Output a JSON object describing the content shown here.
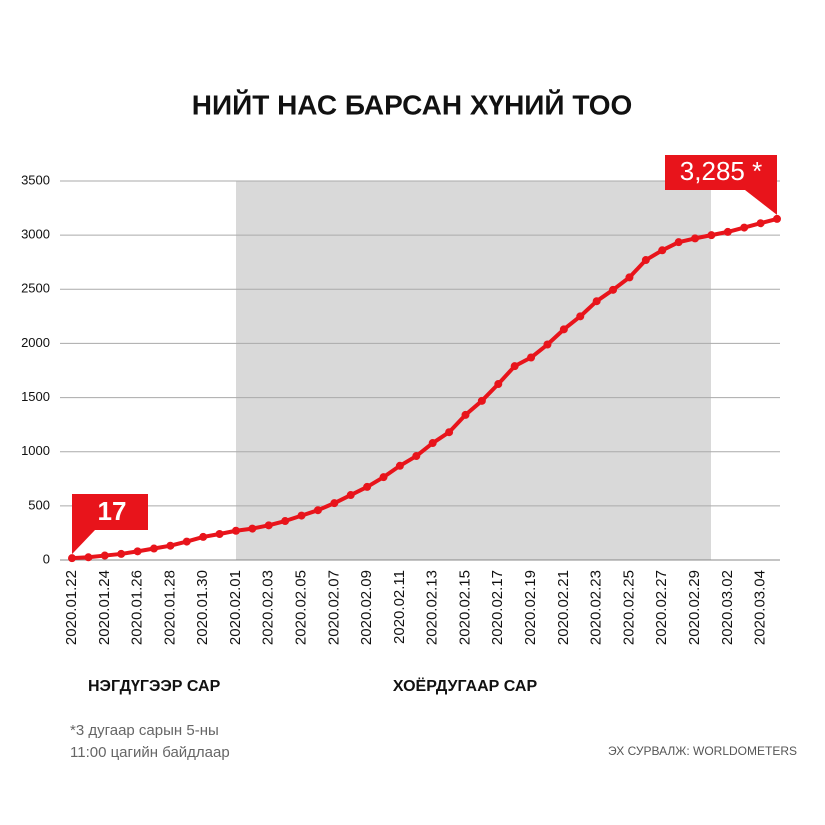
{
  "chart_data": {
    "type": "line",
    "title": "НИЙТ НАС БАРСАН ХҮНИЙ ТОО",
    "categories": [
      "2020.01.22",
      null,
      "2020.01.24",
      null,
      "2020.01.26",
      null,
      "2020.01.28",
      null,
      "2020.01.30",
      null,
      "2020.02.01",
      null,
      "2020.02.03",
      null,
      "2020.02.05",
      null,
      "2020.02.07",
      null,
      "2020.02.09",
      null,
      "2020.02.11",
      null,
      "2020.02.13",
      null,
      "2020.02.15",
      null,
      "2020.02.17",
      null,
      "2020.02.19",
      null,
      "2020.02.21",
      null,
      "2020.02.23",
      null,
      "2020.02.25",
      null,
      "2020.02.27",
      null,
      "2020.02.29",
      null,
      "2020.03.02",
      null,
      "2020.03.04",
      null
    ],
    "series": [
      {
        "color": "#e8141b",
        "values": [
          17,
          25,
          41,
          56,
          80,
          106,
          132,
          170,
          213,
          240,
          270,
          290,
          320,
          360,
          410,
          460,
          525,
          600,
          675,
          765,
          870,
          960,
          1080,
          1180,
          1340,
          1470,
          1625,
          1790,
          1870,
          1990,
          2130,
          2250,
          2390,
          2495,
          2610,
          2770,
          2860,
          2935,
          2970,
          3000,
          3030,
          3070,
          3110,
          3150
        ]
      }
    ],
    "ylim": [
      0,
      3500
    ],
    "yticks": [
      0,
      500,
      1000,
      1500,
      2000,
      2500,
      3000,
      3500
    ],
    "grid": true,
    "annotations": [
      "17",
      "3,285 *"
    ],
    "month_labels": [
      "НЭГДҮГЭЭР САР",
      "ХОЁРДУГААР САР"
    ],
    "footnote": [
      "*3 дугаар сарын 5-ны",
      "11:00 цагийн байдлаар"
    ],
    "source": "ЭХ СУРВАЛЖ: WORLDOMETERS"
  }
}
